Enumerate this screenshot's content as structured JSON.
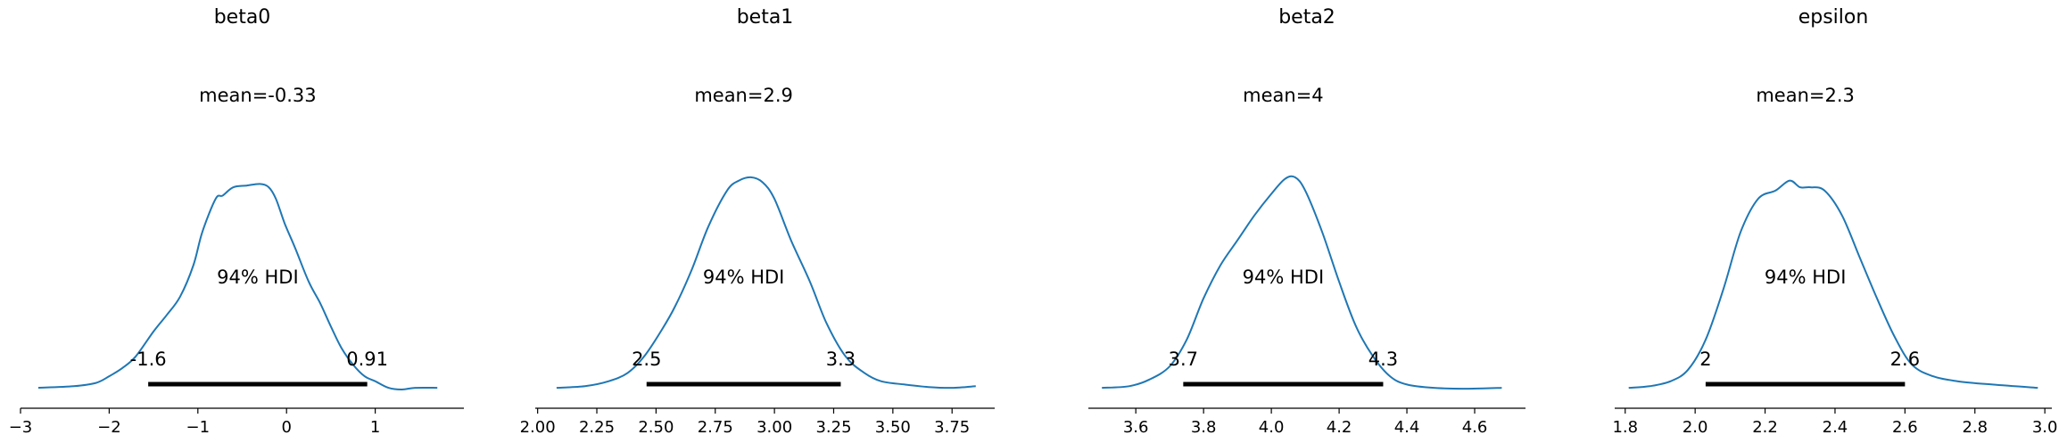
{
  "colors": {
    "density": "#1f77b4",
    "hdi_bar": "#000000",
    "axis": "#000000"
  },
  "chart_data": [
    {
      "type": "line",
      "title": "beta0",
      "mean_label": "mean=-0.33",
      "hdi_label": "94% HDI",
      "hdi": {
        "low": -1.56,
        "high": 0.91,
        "low_label": "-1.6",
        "high_label": "0.91"
      },
      "xlim": [
        -3,
        2
      ],
      "xticks": [
        -3,
        -2,
        -1,
        0,
        1
      ],
      "xtick_labels": [
        "−3",
        "−2",
        "−1",
        "0",
        "1"
      ],
      "density": {
        "x": [
          -2.8,
          -2.4,
          -2.15,
          -2.0,
          -1.85,
          -1.7,
          -1.5,
          -1.35,
          -1.2,
          -1.05,
          -0.95,
          -0.8,
          -0.72,
          -0.6,
          -0.45,
          -0.3,
          -0.2,
          -0.12,
          -0.02,
          0.1,
          0.25,
          0.38,
          0.5,
          0.62,
          0.75,
          0.88,
          1.0,
          1.15,
          1.3,
          1.45,
          1.7
        ],
        "y": [
          0.01,
          0.02,
          0.04,
          0.08,
          0.13,
          0.2,
          0.35,
          0.45,
          0.56,
          0.75,
          0.95,
          1.15,
          1.17,
          1.22,
          1.23,
          1.24,
          1.22,
          1.15,
          1.0,
          0.85,
          0.65,
          0.52,
          0.38,
          0.25,
          0.15,
          0.08,
          0.05,
          0.01,
          0.0,
          0.01,
          0.01
        ]
      }
    },
    {
      "type": "line",
      "title": "beta1",
      "mean_label": "mean=2.9",
      "hdi_label": "94% HDI",
      "hdi": {
        "low": 2.46,
        "high": 3.28,
        "low_label": "2.5",
        "high_label": "3.3"
      },
      "xlim": [
        1.99,
        3.93
      ],
      "xticks": [
        2.0,
        2.25,
        2.5,
        2.75,
        3.0,
        3.25,
        3.5,
        3.75
      ],
      "xtick_labels": [
        "2.00",
        "2.25",
        "2.50",
        "2.75",
        "3.00",
        "3.25",
        "3.50",
        "3.75"
      ],
      "density": {
        "x": [
          2.08,
          2.2,
          2.3,
          2.38,
          2.45,
          2.52,
          2.58,
          2.65,
          2.72,
          2.8,
          2.85,
          2.9,
          2.95,
          3.0,
          3.07,
          3.15,
          3.22,
          3.3,
          3.38,
          3.45,
          3.55,
          3.65,
          3.75,
          3.85
        ],
        "y": [
          0.01,
          0.02,
          0.05,
          0.1,
          0.2,
          0.35,
          0.5,
          0.72,
          0.98,
          1.2,
          1.26,
          1.28,
          1.25,
          1.15,
          0.9,
          0.65,
          0.4,
          0.2,
          0.1,
          0.05,
          0.03,
          0.015,
          0.01,
          0.02
        ]
      }
    },
    {
      "type": "line",
      "title": "beta2",
      "mean_label": "mean=4",
      "hdi_label": "94% HDI",
      "hdi": {
        "low": 3.74,
        "high": 4.33,
        "low_label": "3.7",
        "high_label": "4.3"
      },
      "xlim": [
        3.46,
        4.75
      ],
      "xticks": [
        3.6,
        3.8,
        4.0,
        4.2,
        4.4,
        4.6
      ],
      "xtick_labels": [
        "3.6",
        "3.8",
        "4.0",
        "4.2",
        "4.4",
        "4.6"
      ],
      "density": {
        "x": [
          3.5,
          3.58,
          3.64,
          3.7,
          3.75,
          3.8,
          3.85,
          3.9,
          3.95,
          4.0,
          4.04,
          4.07,
          4.1,
          4.15,
          4.2,
          4.25,
          4.3,
          4.35,
          4.4,
          4.48,
          4.58,
          4.68
        ],
        "y": [
          0.01,
          0.02,
          0.06,
          0.14,
          0.3,
          0.55,
          0.75,
          0.9,
          1.05,
          1.18,
          1.27,
          1.28,
          1.2,
          0.95,
          0.65,
          0.38,
          0.2,
          0.08,
          0.03,
          0.01,
          0.005,
          0.01
        ]
      }
    },
    {
      "type": "line",
      "title": "epsilon",
      "mean_label": "mean=2.3",
      "hdi_label": "94% HDI",
      "hdi": {
        "low": 2.03,
        "high": 2.6,
        "low_label": "2",
        "high_label": "2.6"
      },
      "xlim": [
        1.77,
        3.02
      ],
      "xticks": [
        1.8,
        2.0,
        2.2,
        2.4,
        2.6,
        2.8,
        3.0
      ],
      "xtick_labels": [
        "1.8",
        "2.0",
        "2.2",
        "2.4",
        "2.6",
        "2.8",
        "3.0"
      ],
      "density": {
        "x": [
          1.81,
          1.87,
          1.93,
          1.98,
          2.03,
          2.08,
          2.13,
          2.18,
          2.23,
          2.27,
          2.3,
          2.33,
          2.37,
          2.42,
          2.47,
          2.52,
          2.57,
          2.62,
          2.68,
          2.75,
          2.85,
          2.98
        ],
        "y": [
          0.01,
          0.02,
          0.05,
          0.12,
          0.3,
          0.6,
          0.95,
          1.15,
          1.2,
          1.26,
          1.22,
          1.22,
          1.2,
          1.05,
          0.8,
          0.55,
          0.32,
          0.15,
          0.08,
          0.05,
          0.03,
          0.01
        ]
      }
    }
  ]
}
